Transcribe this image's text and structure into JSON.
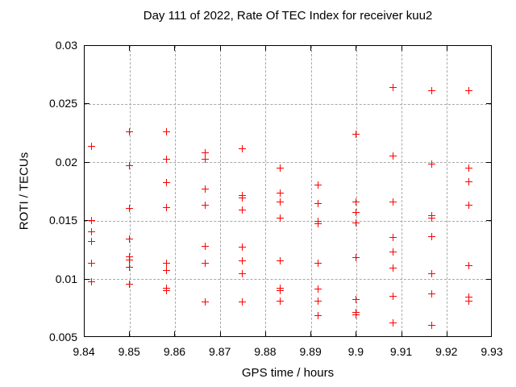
{
  "chart_data": {
    "type": "scatter",
    "title": "Day 111 of 2022, Rate Of TEC Index for receiver kuu2",
    "xlabel": "GPS time / hours",
    "ylabel": "ROTI / TECUs",
    "xlim": [
      9.84,
      9.93
    ],
    "ylim": [
      0.005,
      0.03
    ],
    "grid": true,
    "legend": "none",
    "marker": "plus",
    "marker_color": "#ff0000",
    "grid_color": "#a8a8a8",
    "border_color": "#000000",
    "xticks": [
      {
        "label": "9.84",
        "value": 9.84
      },
      {
        "label": "9.85",
        "value": 9.85
      },
      {
        "label": "9.86",
        "value": 9.86
      },
      {
        "label": "9.87",
        "value": 9.87
      },
      {
        "label": "9.88",
        "value": 9.88
      },
      {
        "label": "9.89",
        "value": 9.89
      },
      {
        "label": "9.9",
        "value": 9.9
      },
      {
        "label": "9.91",
        "value": 9.91
      },
      {
        "label": "9.92",
        "value": 9.92
      },
      {
        "label": "9.93",
        "value": 9.93
      }
    ],
    "yticks": [
      {
        "label": "0.005",
        "value": 0.005
      },
      {
        "label": "0.01",
        "value": 0.01
      },
      {
        "label": "0.015",
        "value": 0.015
      },
      {
        "label": "0.02",
        "value": 0.02
      },
      {
        "label": "0.025",
        "value": 0.025
      },
      {
        "label": "0.03",
        "value": 0.03
      }
    ],
    "points": [
      [
        9.8417,
        0.0213
      ],
      [
        9.8417,
        0.015
      ],
      [
        9.8417,
        0.014
      ],
      [
        9.8417,
        0.0132
      ],
      [
        9.8417,
        0.0113
      ],
      [
        9.8417,
        0.0097
      ],
      [
        9.85,
        0.0226
      ],
      [
        9.85,
        0.0197
      ],
      [
        9.85,
        0.016
      ],
      [
        9.85,
        0.0134
      ],
      [
        9.85,
        0.0119
      ],
      [
        9.85,
        0.0116
      ],
      [
        9.85,
        0.011
      ],
      [
        9.85,
        0.0095
      ],
      [
        9.8583,
        0.0226
      ],
      [
        9.8583,
        0.0202
      ],
      [
        9.8583,
        0.0182
      ],
      [
        9.8583,
        0.0161
      ],
      [
        9.8583,
        0.0113
      ],
      [
        9.8583,
        0.0107
      ],
      [
        9.8583,
        0.0092
      ],
      [
        9.8583,
        0.009
      ],
      [
        9.8667,
        0.0208
      ],
      [
        9.8667,
        0.0202
      ],
      [
        9.8667,
        0.0177
      ],
      [
        9.8667,
        0.0163
      ],
      [
        9.8667,
        0.0128
      ],
      [
        9.8667,
        0.0113
      ],
      [
        9.8667,
        0.008
      ],
      [
        9.875,
        0.0211
      ],
      [
        9.875,
        0.0171
      ],
      [
        9.875,
        0.0169
      ],
      [
        9.875,
        0.0159
      ],
      [
        9.875,
        0.0127
      ],
      [
        9.875,
        0.0115
      ],
      [
        9.875,
        0.0104
      ],
      [
        9.875,
        0.008
      ],
      [
        9.8833,
        0.0195
      ],
      [
        9.8833,
        0.0173
      ],
      [
        9.8833,
        0.0166
      ],
      [
        9.8833,
        0.0152
      ],
      [
        9.8833,
        0.0115
      ],
      [
        9.8833,
        0.0092
      ],
      [
        9.8833,
        0.009
      ],
      [
        9.8833,
        0.0081
      ],
      [
        9.8917,
        0.018
      ],
      [
        9.8917,
        0.0164
      ],
      [
        9.8917,
        0.0149
      ],
      [
        9.8917,
        0.0147
      ],
      [
        9.8917,
        0.0113
      ],
      [
        9.8917,
        0.0091
      ],
      [
        9.8917,
        0.0081
      ],
      [
        9.8917,
        0.0068
      ],
      [
        9.9,
        0.0224
      ],
      [
        9.9,
        0.0166
      ],
      [
        9.9,
        0.0157
      ],
      [
        9.9,
        0.0148
      ],
      [
        9.9,
        0.0118
      ],
      [
        9.9,
        0.0082
      ],
      [
        9.9,
        0.0071
      ],
      [
        9.9,
        0.0069
      ],
      [
        9.9083,
        0.0264
      ],
      [
        9.9083,
        0.0205
      ],
      [
        9.9083,
        0.0166
      ],
      [
        9.9083,
        0.0135
      ],
      [
        9.9083,
        0.0123
      ],
      [
        9.9083,
        0.0109
      ],
      [
        9.9083,
        0.0085
      ],
      [
        9.9083,
        0.0062
      ],
      [
        9.9167,
        0.0261
      ],
      [
        9.9167,
        0.0198
      ],
      [
        9.9167,
        0.0154
      ],
      [
        9.9167,
        0.0152
      ],
      [
        9.9167,
        0.0136
      ],
      [
        9.9167,
        0.0104
      ],
      [
        9.9167,
        0.0087
      ],
      [
        9.9167,
        0.006
      ],
      [
        9.925,
        0.0261
      ],
      [
        9.925,
        0.0195
      ],
      [
        9.925,
        0.0183
      ],
      [
        9.925,
        0.0163
      ],
      [
        9.925,
        0.0111
      ],
      [
        9.925,
        0.0084
      ],
      [
        9.925,
        0.0081
      ]
    ]
  }
}
